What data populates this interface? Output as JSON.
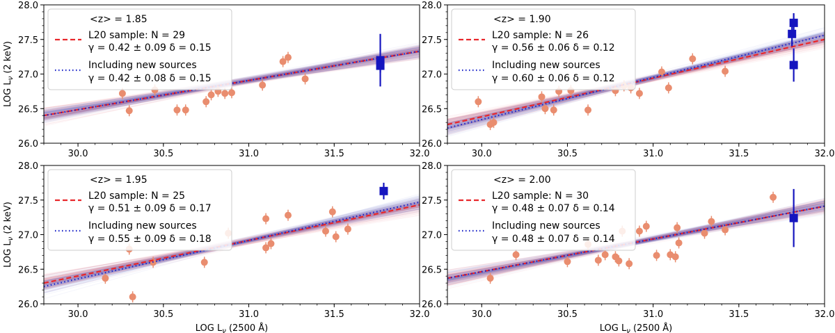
{
  "chart_data": [
    {
      "type": "scatter",
      "panel": "top-left",
      "header": "<z> = 1.85",
      "legend": {
        "l20_label": "L20 sample: N = 29",
        "l20_params": "γ = 0.42 ± 0.09  δ = 0.15",
        "new_label": "Including new sources",
        "new_params": "γ = 0.42 ± 0.08  δ = 0.15"
      },
      "xlim": [
        29.8,
        32.0
      ],
      "ylim": [
        26.0,
        28.0
      ],
      "xticks": [
        "30.0",
        "30.5",
        "31.0",
        "31.5",
        "32.0"
      ],
      "yticks": [
        "26.0",
        "26.5",
        "27.0",
        "27.5",
        "28.0"
      ],
      "xlabel": "",
      "ylabel": "LOG Lν (2 keV)",
      "ylabel_main": "LOG L",
      "ylabel_sub": "ν",
      "ylabel_tail": " (2 keV)",
      "fit_l20": {
        "gamma": 0.42,
        "x0": 29.8,
        "y0": 26.4,
        "x1": 32.0,
        "y1": 27.33
      },
      "fit_new": {
        "gamma": 0.42,
        "x0": 29.8,
        "y0": 26.4,
        "x1": 32.0,
        "y1": 27.33
      },
      "l20_points": [
        [
          30.26,
          26.72
        ],
        [
          30.3,
          26.47
        ],
        [
          30.45,
          26.77
        ],
        [
          30.58,
          26.48
        ],
        [
          30.63,
          26.48
        ],
        [
          30.75,
          26.6
        ],
        [
          30.78,
          26.7
        ],
        [
          30.82,
          26.75
        ],
        [
          30.86,
          26.72
        ],
        [
          30.9,
          26.73
        ],
        [
          31.08,
          26.84
        ],
        [
          31.2,
          27.18
        ],
        [
          31.23,
          27.24
        ],
        [
          31.33,
          26.93
        ]
      ],
      "new_points": [
        [
          31.77,
          27.2,
          0.38
        ],
        [
          31.77,
          27.12,
          0.1
        ]
      ]
    },
    {
      "type": "scatter",
      "panel": "top-right",
      "header": "<z> = 1.90",
      "legend": {
        "l20_label": "L20 sample: N = 26",
        "l20_params": "γ = 0.56 ± 0.06  δ = 0.12",
        "new_label": "Including new sources",
        "new_params": "γ = 0.60 ± 0.06  δ = 0.12"
      },
      "xlim": [
        29.8,
        32.0
      ],
      "ylim": [
        26.0,
        28.0
      ],
      "xticks": [
        "30.0",
        "30.5",
        "31.0",
        "31.5",
        "32.0"
      ],
      "yticks": [
        "26.0",
        "26.5",
        "27.0",
        "27.5",
        "28.0"
      ],
      "xlabel": "",
      "ylabel": "",
      "fit_l20": {
        "gamma": 0.56,
        "x0": 29.8,
        "y0": 26.27,
        "x1": 32.0,
        "y1": 27.5
      },
      "fit_new": {
        "gamma": 0.6,
        "x0": 29.8,
        "y0": 26.22,
        "x1": 32.0,
        "y1": 27.56
      },
      "l20_points": [
        [
          29.98,
          26.6
        ],
        [
          30.05,
          26.27
        ],
        [
          30.07,
          26.3
        ],
        [
          30.35,
          26.67
        ],
        [
          30.37,
          26.5
        ],
        [
          30.42,
          26.48
        ],
        [
          30.45,
          26.75
        ],
        [
          30.52,
          26.76
        ],
        [
          30.62,
          26.48
        ],
        [
          30.78,
          26.76
        ],
        [
          30.83,
          26.83
        ],
        [
          30.87,
          26.8
        ],
        [
          30.92,
          26.72
        ],
        [
          31.05,
          27.03
        ],
        [
          31.09,
          26.8
        ],
        [
          31.23,
          27.22
        ],
        [
          31.42,
          27.04
        ]
      ],
      "new_points": [
        [
          31.82,
          27.74,
          0.14
        ],
        [
          31.81,
          27.58,
          0.18
        ],
        [
          31.82,
          27.13,
          0.24
        ]
      ]
    },
    {
      "type": "scatter",
      "panel": "bottom-left",
      "header": "<z> = 1.95",
      "legend": {
        "l20_label": "L20 sample: N = 25",
        "l20_params": "γ = 0.51 ± 0.09  δ = 0.17",
        "new_label": "Including new sources",
        "new_params": "γ = 0.55 ± 0.09  δ = 0.18"
      },
      "xlim": [
        29.8,
        32.0
      ],
      "ylim": [
        26.0,
        28.0
      ],
      "xticks": [
        "30.0",
        "30.5",
        "31.0",
        "31.5",
        "32.0"
      ],
      "yticks": [
        "26.0",
        "26.5",
        "27.0",
        "27.5",
        "28.0"
      ],
      "xlabel": "LOG Lν (2500 Å)",
      "ylabel": "LOG Lν (2 keV)",
      "xlabel_main": "LOG L",
      "xlabel_sub": "ν",
      "xlabel_tail": " (2500 Å)",
      "ylabel_main": "LOG L",
      "ylabel_sub": "ν",
      "ylabel_tail": " (2 keV)",
      "fit_l20": {
        "gamma": 0.51,
        "x0": 29.8,
        "y0": 26.3,
        "x1": 32.0,
        "y1": 27.43
      },
      "fit_new": {
        "gamma": 0.55,
        "x0": 29.8,
        "y0": 26.25,
        "x1": 32.0,
        "y1": 27.47
      },
      "l20_points": [
        [
          30.16,
          26.37
        ],
        [
          30.3,
          26.79
        ],
        [
          30.32,
          26.1
        ],
        [
          30.44,
          26.6
        ],
        [
          30.74,
          26.6
        ],
        [
          30.88,
          27.02
        ],
        [
          31.1,
          26.81
        ],
        [
          31.1,
          27.23
        ],
        [
          31.13,
          26.87
        ],
        [
          31.23,
          27.28
        ],
        [
          31.45,
          27.05
        ],
        [
          31.49,
          27.33
        ],
        [
          31.51,
          26.97
        ],
        [
          31.58,
          27.08
        ]
      ],
      "new_points": [
        [
          31.79,
          27.63,
          0.12
        ]
      ]
    },
    {
      "type": "scatter",
      "panel": "bottom-right",
      "header": "<z> = 2.00",
      "legend": {
        "l20_label": "L20 sample: N = 30",
        "l20_params": "γ = 0.48 ± 0.07  δ = 0.14",
        "new_label": "Including new sources",
        "new_params": "γ = 0.48 ± 0.07  δ = 0.14"
      },
      "xlim": [
        29.8,
        32.0
      ],
      "ylim": [
        26.0,
        28.0
      ],
      "xticks": [
        "30.0",
        "30.5",
        "31.0",
        "31.5",
        "32.0"
      ],
      "yticks": [
        "26.0",
        "26.5",
        "27.0",
        "27.5",
        "28.0"
      ],
      "xlabel": "LOG Lν (2500 Å)",
      "ylabel": "",
      "xlabel_main": "LOG L",
      "xlabel_sub": "ν",
      "xlabel_tail": " (2500 Å)",
      "fit_l20": {
        "gamma": 0.48,
        "x0": 29.8,
        "y0": 26.37,
        "x1": 32.0,
        "y1": 27.41
      },
      "fit_new": {
        "gamma": 0.48,
        "x0": 29.8,
        "y0": 26.37,
        "x1": 32.0,
        "y1": 27.41
      },
      "l20_points": [
        [
          30.05,
          26.37
        ],
        [
          30.2,
          26.71
        ],
        [
          30.5,
          26.61
        ],
        [
          30.62,
          26.86
        ],
        [
          30.68,
          26.63
        ],
        [
          30.72,
          26.71
        ],
        [
          30.78,
          26.68
        ],
        [
          30.8,
          26.62
        ],
        [
          30.82,
          27.05
        ],
        [
          30.86,
          26.58
        ],
        [
          30.92,
          27.05
        ],
        [
          30.96,
          27.12
        ],
        [
          31.02,
          26.7
        ],
        [
          31.1,
          26.71
        ],
        [
          31.13,
          26.68
        ],
        [
          31.14,
          27.1
        ],
        [
          31.15,
          26.88
        ],
        [
          31.3,
          27.02
        ],
        [
          31.34,
          27.19
        ],
        [
          31.42,
          27.07
        ],
        [
          31.7,
          27.54
        ]
      ],
      "new_points": [
        [
          31.82,
          27.24,
          0.42
        ]
      ]
    }
  ],
  "colors": {
    "l20": "#e8272b",
    "new": "#1a23c9",
    "marker_l20": "#e98d6f",
    "marker_new": "#1515bf",
    "band_red": "#e96a72",
    "band_blue": "#6f7fd9"
  }
}
